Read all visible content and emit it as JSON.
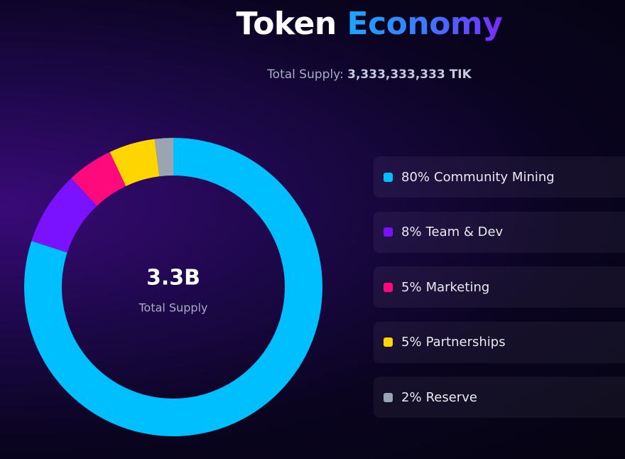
{
  "chart_data": {
    "type": "donut",
    "title": "Token",
    "title_highlight": "Economy",
    "subtitle_label": "Total Supply:",
    "subtitle_value": "3,333,333,333 TIK",
    "center_value": "3.3B",
    "center_label": "Total Supply",
    "categories": [
      "Community Mining",
      "Team & Dev",
      "Marketing",
      "Partnerships",
      "Reserve"
    ],
    "values": [
      80,
      8,
      5,
      5,
      2
    ],
    "value_labels": [
      "80%",
      "8%",
      "5%",
      "5%",
      "2%"
    ],
    "colors": [
      "#00bfff",
      "#7a12ff",
      "#ff0a7d",
      "#ffd500",
      "#9aa4b2"
    ]
  }
}
